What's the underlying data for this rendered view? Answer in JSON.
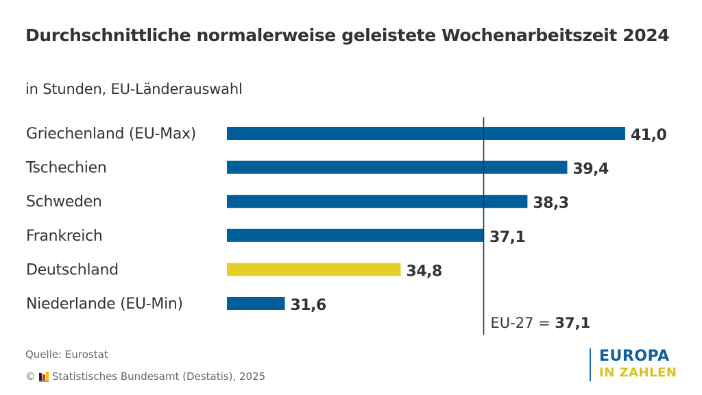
{
  "title": "Durchschnittliche normalerweise geleistete Wochenarbeitszeit 2024",
  "subtitle": "in Stunden, EU-Länderauswahl",
  "chart_data": {
    "type": "bar",
    "orientation": "horizontal",
    "title": "Durchschnittliche normalerweise geleistete Wochenarbeitszeit 2024",
    "subtitle": "in Stunden, EU-Länderauswahl",
    "xlabel": "",
    "ylabel": "",
    "xlim": [
      30,
      41
    ],
    "grid": false,
    "categories": [
      "Griechenland (EU-Max)",
      "Tschechien",
      "Schweden",
      "Frankreich",
      "Deutschland",
      "Niederlande (EU-Min)"
    ],
    "values": [
      41.0,
      39.4,
      38.3,
      37.1,
      34.8,
      31.6
    ],
    "value_labels": [
      "41,0",
      "39,4",
      "38,3",
      "37,1",
      "34,8",
      "31,6"
    ],
    "bar_colors": [
      "#005f99",
      "#005f99",
      "#005f99",
      "#005f99",
      "#e3cf25",
      "#005f99"
    ],
    "reference_line": {
      "label": "EU-27 = ",
      "value": 37.1,
      "value_label": "37,1",
      "color": "#0b3a5e"
    }
  },
  "footer": {
    "source": "Quelle: Eurostat",
    "copyright_symbol": "©",
    "copyright": "Statistisches Bundesamt (Destatis), 2025"
  },
  "brand": {
    "line1": "EUROPA",
    "line2": "IN ZAHLEN"
  }
}
